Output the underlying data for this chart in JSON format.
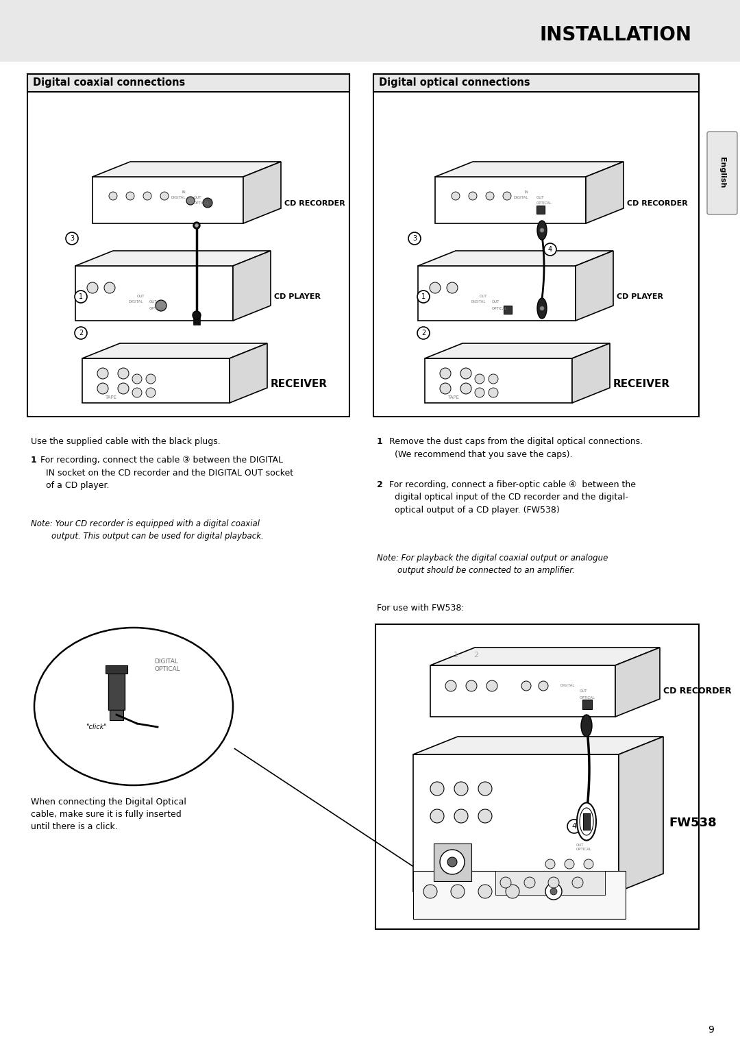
{
  "page_bg": "#e8e8e8",
  "content_bg": "#ffffff",
  "title": "INSTALLATION",
  "title_color": "#000000",
  "title_fontsize": 20,
  "section_left_title": "Digital coaxial connections",
  "section_right_title": "Digital optical connections",
  "section_title_fontsize": 10.5,
  "body_fontsize": 9,
  "note_fontsize": 8.5,
  "page_number": "9",
  "sidebar_text": "English",
  "left_text_intro": "Use the supplied cable with the black plugs.",
  "left_text_1_bold": "1",
  "left_text_1_rest": " For recording, connect the cable ③ between the DIGITAL\n   IN socket on the CD recorder and the DIGITAL OUT socket\n   of a CD player.",
  "left_note": "Note: Your CD recorder is equipped with a digital coaxial\n        output. This output can be used for digital playback.",
  "right_text_1_bold": "1",
  "right_text_1_rest": "  Remove the dust caps from the digital optical connections.\n    (We recommend that you save the caps).",
  "right_text_2_bold": "2",
  "right_text_2_rest": "  For recording, connect a fiber-optic cable ④  between the\n    digital optical input of the CD recorder and the digital-\n    optical output of a CD player. (FW538)",
  "right_note": "Note: For playback the digital coaxial output or analogue\n        output should be connected to an amplifier.",
  "right_text_fw": "For use with FW538:",
  "click_caption_line1": "When connecting the Digital Optical",
  "click_caption_line2": "cable, make sure it is fully inserted",
  "click_caption_line3": "until there is a click."
}
